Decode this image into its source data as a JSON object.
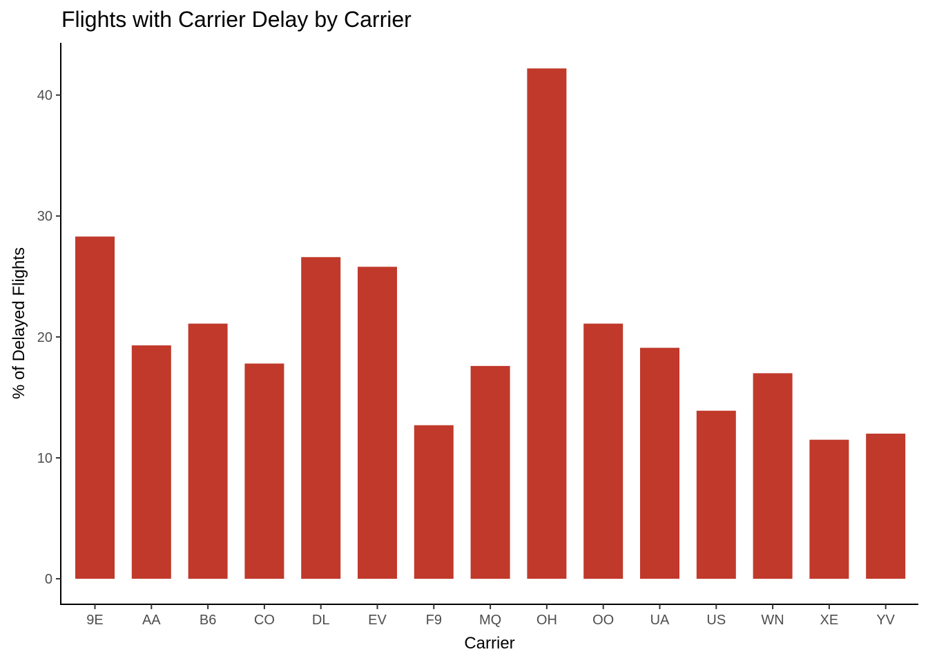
{
  "chart_data": {
    "type": "bar",
    "title": "Flights with Carrier Delay by Carrier",
    "xlabel": "Carrier",
    "ylabel": "% of Delayed Flights",
    "categories": [
      "9E",
      "AA",
      "B6",
      "CO",
      "DL",
      "EV",
      "F9",
      "MQ",
      "OH",
      "OO",
      "UA",
      "US",
      "WN",
      "XE",
      "YV"
    ],
    "values": [
      28.3,
      19.3,
      21.1,
      17.8,
      26.6,
      25.8,
      12.7,
      17.6,
      42.2,
      21.1,
      19.1,
      13.9,
      17.0,
      11.5,
      12.0
    ],
    "yticks": [
      0,
      10,
      20,
      30,
      40
    ],
    "ylim": [
      -2.11,
      44.32
    ],
    "grid": false,
    "legend": "none",
    "bar_color": "#C0392B"
  }
}
